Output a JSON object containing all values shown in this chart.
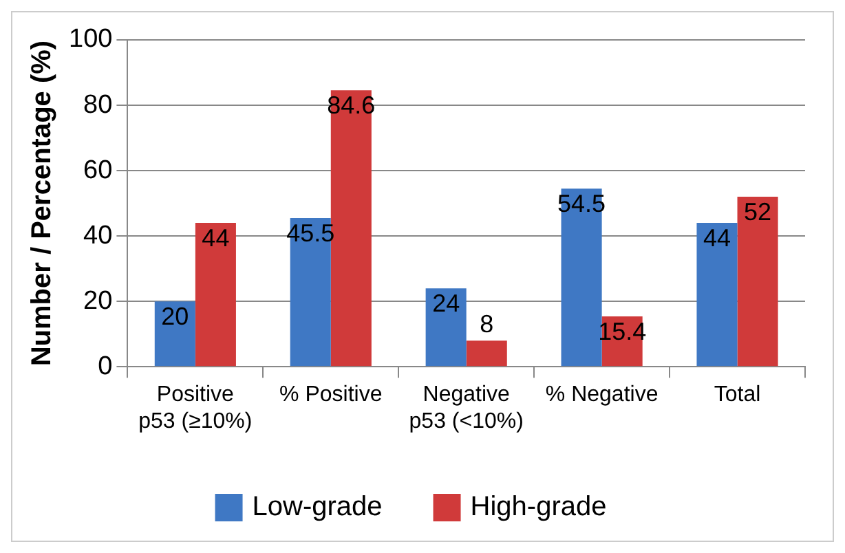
{
  "chart_data": {
    "type": "bar",
    "ylabel": "Number / Percentage (%)",
    "categories": [
      "Positive p53 (≥10%)",
      "% Positive",
      "Negative p53 (<10%)",
      "% Negative",
      "Total"
    ],
    "series": [
      {
        "name": "Low-grade",
        "color": "#3f78c4",
        "values": [
          20,
          45.5,
          24,
          54.5,
          44
        ]
      },
      {
        "name": "High-grade",
        "color": "#d03a3a",
        "values": [
          44,
          84.6,
          8,
          15.4,
          52
        ]
      }
    ],
    "ylim": [
      0,
      100
    ],
    "yticks": [
      0,
      20,
      40,
      60,
      80,
      100
    ],
    "grid": "y",
    "legend": "bottom",
    "data_labels": true
  }
}
